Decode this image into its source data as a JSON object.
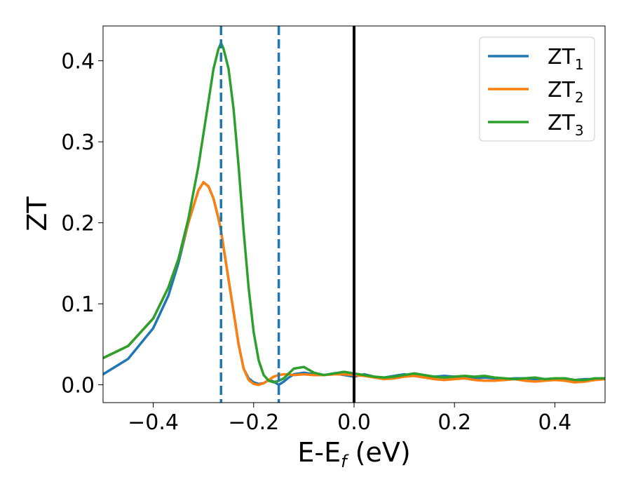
{
  "chart_data": {
    "type": "line",
    "xlabel": "E-E",
    "xlabel_sub": "f",
    "xlabel_unit": "(eV)",
    "ylabel": "ZT",
    "xlim": [
      -0.5,
      0.5
    ],
    "ylim": [
      -0.022,
      0.443
    ],
    "xticks": [
      -0.4,
      -0.2,
      0.0,
      0.2,
      0.4
    ],
    "xtick_labels": [
      "−0.4",
      "−0.2",
      "0.0",
      "0.2",
      "0.4"
    ],
    "yticks": [
      0.0,
      0.1,
      0.2,
      0.3,
      0.4
    ],
    "ytick_labels": [
      "0.0",
      "0.1",
      "0.2",
      "0.3",
      "0.4"
    ],
    "grid": false,
    "legend_position": "top-right",
    "vlines": [
      {
        "x": -0.265,
        "style": "dashed",
        "color": "#1f77b4"
      },
      {
        "x": -0.15,
        "style": "dashed",
        "color": "#1f77b4"
      },
      {
        "x": 0.0,
        "style": "solid",
        "color": "#000000"
      }
    ],
    "series": [
      {
        "name": "ZT",
        "name_sub": "1",
        "color": "#1f77b4",
        "x": [
          -0.5,
          -0.45,
          -0.4,
          -0.37,
          -0.35,
          -0.33,
          -0.31,
          -0.3,
          -0.29,
          -0.28,
          -0.27,
          -0.265,
          -0.26,
          -0.25,
          -0.24,
          -0.23,
          -0.22,
          -0.21,
          -0.2,
          -0.19,
          -0.18,
          -0.17,
          -0.16,
          -0.15,
          -0.14,
          -0.13,
          -0.12,
          -0.1,
          -0.08,
          -0.06,
          -0.04,
          -0.02,
          0.0,
          0.02,
          0.04,
          0.06,
          0.08,
          0.1,
          0.12,
          0.14,
          0.16,
          0.18,
          0.2,
          0.22,
          0.24,
          0.26,
          0.28,
          0.3,
          0.32,
          0.34,
          0.36,
          0.38,
          0.4,
          0.42,
          0.44,
          0.46,
          0.48,
          0.5
        ],
        "y": [
          0.013,
          0.032,
          0.07,
          0.11,
          0.15,
          0.2,
          0.24,
          0.25,
          0.245,
          0.23,
          0.205,
          0.19,
          0.17,
          0.13,
          0.09,
          0.05,
          0.02,
          0.008,
          0.003,
          0.001,
          0.002,
          0.006,
          0.004,
          0.0,
          0.004,
          0.009,
          0.013,
          0.015,
          0.013,
          0.012,
          0.014,
          0.012,
          0.01,
          0.013,
          0.01,
          0.009,
          0.011,
          0.013,
          0.011,
          0.009,
          0.01,
          0.011,
          0.01,
          0.009,
          0.008,
          0.009,
          0.008,
          0.007,
          0.008,
          0.008,
          0.007,
          0.007,
          0.007,
          0.006,
          0.006,
          0.007,
          0.007,
          0.008
        ]
      },
      {
        "name": "ZT",
        "name_sub": "2",
        "color": "#ff7f0e",
        "x": [
          -0.5,
          -0.45,
          -0.4,
          -0.37,
          -0.35,
          -0.33,
          -0.31,
          -0.3,
          -0.29,
          -0.28,
          -0.27,
          -0.265,
          -0.26,
          -0.25,
          -0.24,
          -0.23,
          -0.22,
          -0.21,
          -0.2,
          -0.19,
          -0.18,
          -0.17,
          -0.16,
          -0.15,
          -0.14,
          -0.13,
          -0.12,
          -0.1,
          -0.08,
          -0.06,
          -0.04,
          -0.02,
          0.0,
          0.02,
          0.04,
          0.06,
          0.08,
          0.1,
          0.12,
          0.14,
          0.16,
          0.18,
          0.2,
          0.22,
          0.24,
          0.26,
          0.28,
          0.3,
          0.32,
          0.34,
          0.36,
          0.38,
          0.4,
          0.42,
          0.44,
          0.46,
          0.48,
          0.5
        ],
        "y": [
          0.033,
          0.048,
          0.082,
          0.12,
          0.155,
          0.2,
          0.24,
          0.25,
          0.245,
          0.23,
          0.205,
          0.19,
          0.17,
          0.13,
          0.09,
          0.05,
          0.02,
          0.006,
          0.001,
          0.0,
          0.002,
          0.006,
          0.01,
          0.012,
          0.013,
          0.013,
          0.012,
          0.013,
          0.012,
          0.012,
          0.013,
          0.013,
          0.012,
          0.011,
          0.009,
          0.007,
          0.008,
          0.01,
          0.011,
          0.009,
          0.007,
          0.006,
          0.007,
          0.008,
          0.006,
          0.005,
          0.005,
          0.006,
          0.007,
          0.005,
          0.004,
          0.005,
          0.006,
          0.005,
          0.003,
          0.004,
          0.006,
          0.007
        ]
      },
      {
        "name": "ZT",
        "name_sub": "3",
        "color": "#2ca02c",
        "x": [
          -0.5,
          -0.45,
          -0.4,
          -0.37,
          -0.35,
          -0.33,
          -0.31,
          -0.3,
          -0.29,
          -0.28,
          -0.27,
          -0.265,
          -0.26,
          -0.25,
          -0.24,
          -0.23,
          -0.22,
          -0.21,
          -0.2,
          -0.19,
          -0.18,
          -0.17,
          -0.16,
          -0.15,
          -0.14,
          -0.13,
          -0.12,
          -0.1,
          -0.08,
          -0.06,
          -0.04,
          -0.02,
          0.0,
          0.02,
          0.04,
          0.06,
          0.08,
          0.1,
          0.12,
          0.14,
          0.16,
          0.18,
          0.2,
          0.22,
          0.24,
          0.26,
          0.28,
          0.3,
          0.32,
          0.34,
          0.36,
          0.38,
          0.4,
          0.42,
          0.44,
          0.46,
          0.48,
          0.5
        ],
        "y": [
          0.033,
          0.048,
          0.082,
          0.12,
          0.155,
          0.205,
          0.27,
          0.31,
          0.35,
          0.39,
          0.415,
          0.422,
          0.415,
          0.39,
          0.34,
          0.27,
          0.19,
          0.12,
          0.065,
          0.03,
          0.012,
          0.005,
          0.003,
          0.005,
          0.008,
          0.014,
          0.02,
          0.022,
          0.015,
          0.012,
          0.014,
          0.016,
          0.014,
          0.012,
          0.01,
          0.009,
          0.01,
          0.012,
          0.014,
          0.012,
          0.01,
          0.009,
          0.01,
          0.011,
          0.01,
          0.011,
          0.009,
          0.008,
          0.007,
          0.008,
          0.009,
          0.007,
          0.008,
          0.008,
          0.006,
          0.006,
          0.008,
          0.008
        ]
      }
    ]
  }
}
